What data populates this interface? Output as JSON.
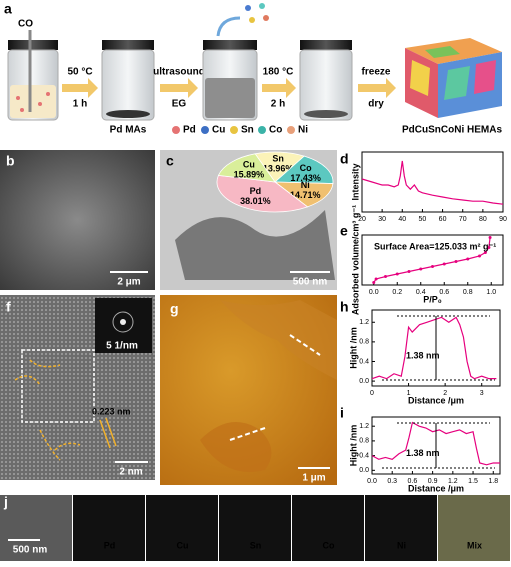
{
  "figure": {
    "panel_labels": {
      "a": "a",
      "b": "b",
      "c": "c",
      "d": "d",
      "e": "e",
      "f": "f",
      "g": "g",
      "h": "h",
      "i": "i",
      "j": "j"
    },
    "scheme": {
      "gas": "CO",
      "step1": [
        "50 °C",
        "1 h"
      ],
      "product1": "Pd MAs",
      "step2": [
        "ultrasound",
        "EG"
      ],
      "step3": [
        "180 °C",
        "2 h"
      ],
      "step4": [
        "freeze",
        "dry"
      ],
      "elements": [
        "Pd",
        "Cu",
        "Sn",
        "Co",
        "Ni"
      ],
      "product2": "PdCuSnCoNi HEMAs"
    },
    "scale_bars": {
      "b": "2 μm",
      "c": "500 nm",
      "f_inset": "5 1/nm",
      "f": "2 nm",
      "g": "1 μm",
      "j": "500 nm"
    },
    "lattice": "0.223 nm",
    "mapping": [
      "Pd",
      "Cu",
      "Sn",
      "Co",
      "Ni",
      "Mix"
    ]
  },
  "chart_data": [
    {
      "type": "pie",
      "categories": [
        "Sn",
        "Co",
        "Ni",
        "Pd",
        "Cu"
      ],
      "values": [
        13.96,
        17.43,
        14.71,
        38.01,
        15.89
      ],
      "value_labels": [
        "13.96%",
        "17.43%",
        "14.71%",
        "38.01%",
        "15.89%"
      ],
      "colors": [
        "#fbf3b8",
        "#5cc8c0",
        "#f0c070",
        "#f7b8c4",
        "#d9ee9a"
      ]
    },
    {
      "type": "line",
      "ylabel": "Intensity",
      "color": "#e6007e",
      "xlim": [
        20,
        90
      ],
      "ylim": [
        0,
        1
      ],
      "xticks": [
        20,
        30,
        40,
        50,
        60,
        70,
        80,
        90
      ],
      "x": [
        20,
        25,
        30,
        33,
        36,
        38,
        39,
        40,
        41,
        42,
        44,
        46,
        47,
        48,
        50,
        55,
        60,
        65,
        70,
        75,
        80,
        85,
        90
      ],
      "values": [
        0.55,
        0.5,
        0.45,
        0.45,
        0.42,
        0.45,
        0.6,
        0.85,
        0.6,
        0.45,
        0.38,
        0.45,
        0.4,
        0.35,
        0.32,
        0.28,
        0.25,
        0.22,
        0.2,
        0.18,
        0.18,
        0.15,
        0.13
      ]
    },
    {
      "type": "line",
      "markers": true,
      "ylabel": "Adsorbed volume/cm³ g⁻¹",
      "xlabel": "P/P₀",
      "annotation": "Surface Area=125.033 m² g⁻¹",
      "color": "#e6007e",
      "xlim": [
        -0.1,
        1.1
      ],
      "ylim": [
        0,
        1
      ],
      "xticks": [
        {
          "value": 0,
          "label": "0.0"
        },
        0.2,
        0.4,
        0.6,
        0.8,
        {
          "value": 1,
          "label": "1.0"
        }
      ],
      "x": [
        0,
        0.02,
        0.1,
        0.2,
        0.3,
        0.4,
        0.5,
        0.6,
        0.7,
        0.8,
        0.9,
        0.95,
        0.98,
        0.99
      ],
      "values": [
        0.05,
        0.12,
        0.17,
        0.22,
        0.27,
        0.32,
        0.37,
        0.42,
        0.47,
        0.52,
        0.58,
        0.65,
        0.75,
        0.95
      ]
    },
    {
      "type": "line",
      "ylabel": "Hight /nm",
      "xlabel": "Distance /μm",
      "annotation": "1.38 nm",
      "color": "#e6007e",
      "xlim": [
        0,
        3.5
      ],
      "ylim": [
        -0.1,
        1.45
      ],
      "xticks": [
        0,
        1,
        2,
        3
      ],
      "yticks": [
        {
          "value": 0,
          "label": "0.0"
        },
        0.4,
        0.8,
        1.2
      ],
      "x": [
        0,
        0.2,
        0.4,
        0.6,
        0.8,
        0.9,
        1.0,
        1.1,
        1.3,
        1.5,
        1.7,
        1.9,
        2.1,
        2.3,
        2.4,
        2.5,
        2.6,
        2.7,
        2.8,
        3.0,
        3.2,
        3.4
      ],
      "values": [
        0.05,
        0.1,
        0.05,
        0.15,
        0.1,
        0.5,
        1.1,
        1.0,
        1.15,
        1.2,
        1.25,
        1.3,
        1.2,
        1.3,
        1.15,
        0.9,
        0.4,
        0.1,
        0.05,
        0.1,
        0.05,
        0.05
      ]
    },
    {
      "type": "line",
      "ylabel": "Hight /nm",
      "xlabel": "Distance /μm",
      "annotation": "1.38 nm",
      "color": "#e6007e",
      "xlim": [
        0,
        1.9
      ],
      "ylim": [
        -0.1,
        1.45
      ],
      "xticks": [
        {
          "value": 0,
          "label": "0.0"
        },
        0.3,
        0.6,
        0.9,
        1.2,
        1.5,
        1.8
      ],
      "yticks": [
        {
          "value": 0,
          "label": "0.0"
        },
        0.4,
        0.8,
        1.2
      ],
      "x": [
        0,
        0.1,
        0.2,
        0.3,
        0.4,
        0.5,
        0.55,
        0.6,
        0.7,
        0.8,
        0.9,
        1.0,
        1.1,
        1.2,
        1.3,
        1.4,
        1.5,
        1.55,
        1.6,
        1.7,
        1.8,
        1.9
      ],
      "values": [
        0.4,
        0.3,
        0.35,
        0.3,
        0.45,
        0.55,
        0.9,
        1.3,
        1.2,
        1.15,
        1.05,
        1.1,
        1.0,
        1.05,
        1.1,
        1.0,
        1.05,
        0.6,
        0.2,
        0.15,
        0.2,
        0.2
      ]
    }
  ]
}
